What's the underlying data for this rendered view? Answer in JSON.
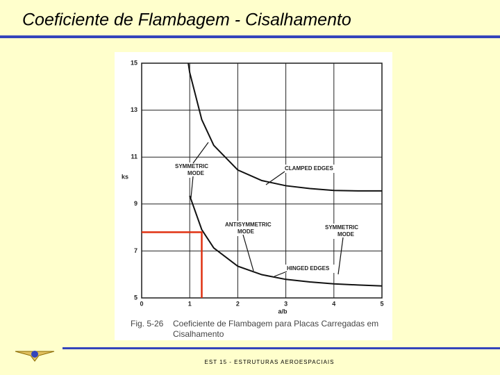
{
  "slide": {
    "title": "Coeficiente de Flambagem - Cisalhamento",
    "footer": "EST 15 - ESTRUTURAS AEROESPACIAIS"
  },
  "caption": {
    "label": "Fig. 5-26",
    "lines": [
      "Coeficiente de Flambagem para Placas Carregadas em",
      "Cisalhamento"
    ]
  },
  "chart_data": {
    "type": "line",
    "xlabel": "a/b",
    "ylabel": "ks",
    "x": [
      0.97,
      1,
      1.25,
      1.5,
      2,
      2.5,
      3,
      3.5,
      4,
      4.5,
      5
    ],
    "series": [
      {
        "name": "CLAMPED EDGES",
        "color": "#111111",
        "values": [
          15,
          14.6,
          12.6,
          11.5,
          10.45,
          10.0,
          9.78,
          9.66,
          9.58,
          9.56,
          9.56
        ]
      },
      {
        "name": "HINGED EDGES",
        "color": "#111111",
        "values": [
          null,
          9.35,
          7.91,
          7.13,
          6.35,
          5.99,
          5.79,
          5.68,
          5.6,
          5.55,
          5.51
        ]
      }
    ],
    "annotations": [
      {
        "lines": [
          "SYMMETRIC",
          "MODE"
        ]
      },
      {
        "lines": [
          "ANTISYMMETRIC",
          "MODE"
        ]
      },
      {
        "lines": [
          "SYMMETRIC",
          "MODE"
        ]
      }
    ],
    "highlight": {
      "x": 1.25,
      "y": 7.8,
      "color": "#e03010"
    },
    "xlim": [
      0,
      5
    ],
    "xticks": [
      0,
      1,
      2,
      3,
      4,
      5
    ],
    "ylim": [
      5,
      15
    ],
    "yticks": [
      5,
      7,
      9,
      11,
      13,
      15
    ],
    "grid": true
  }
}
